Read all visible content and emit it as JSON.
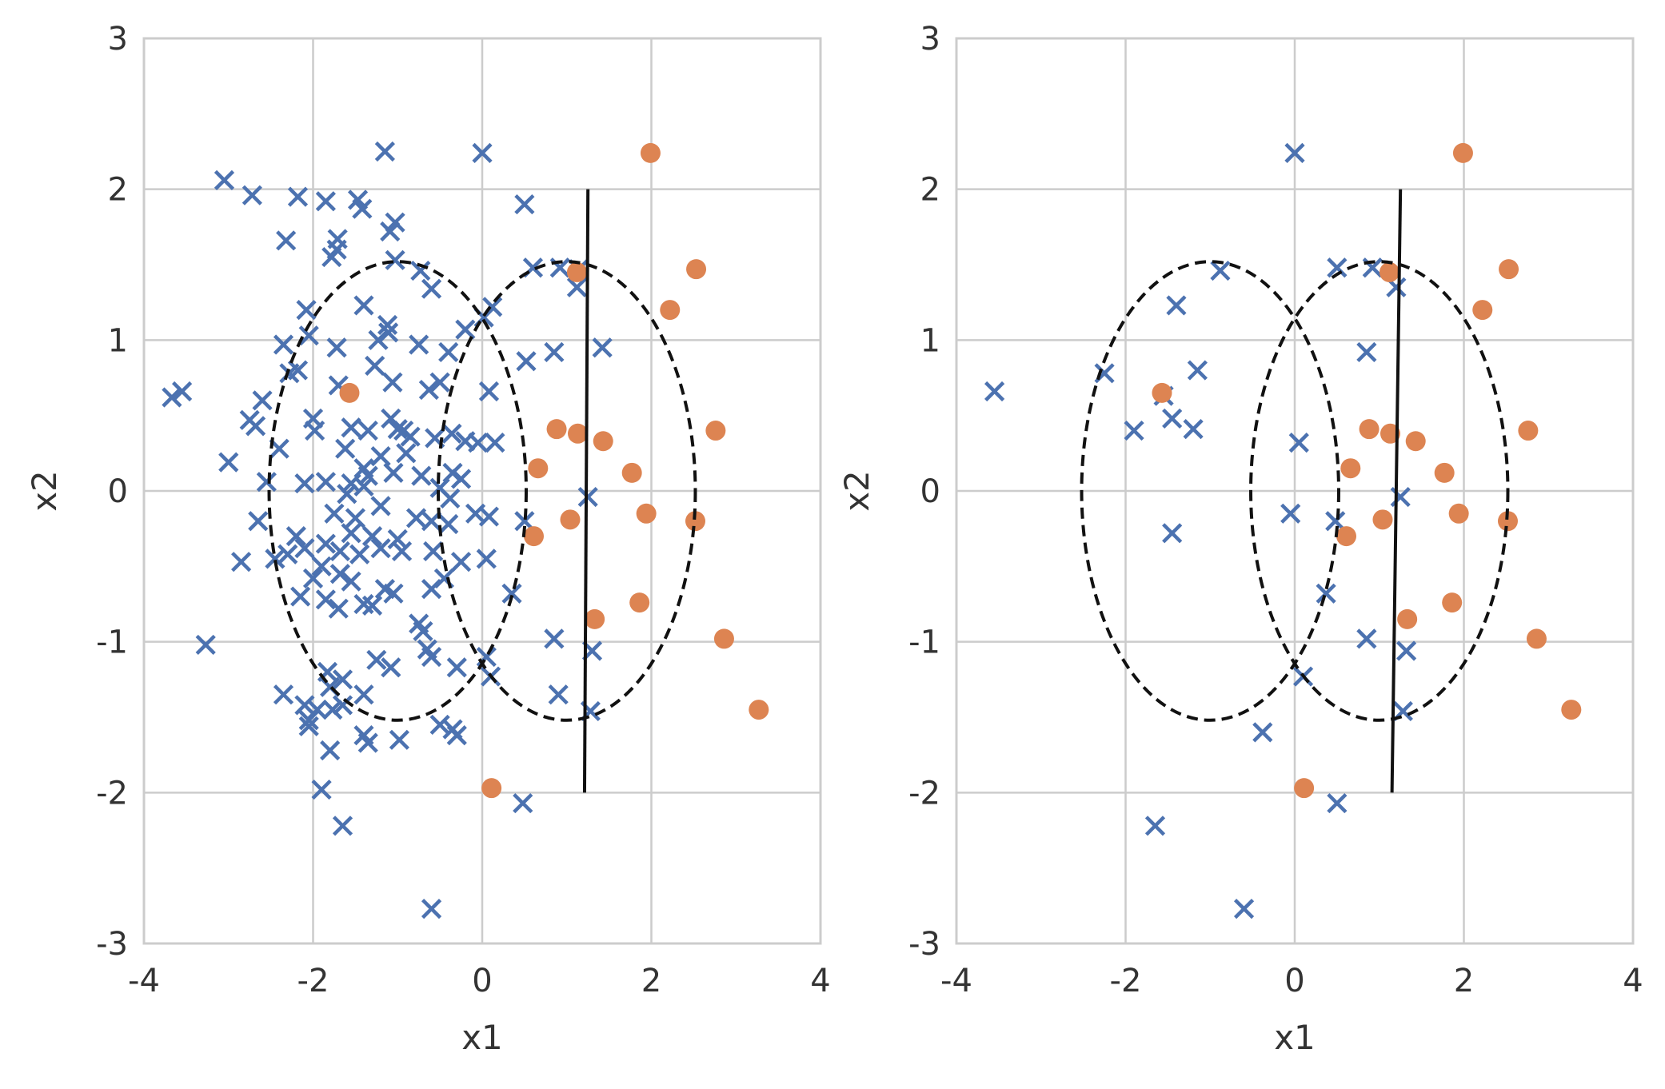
{
  "chart_data": [
    {
      "type": "scatter",
      "title": "",
      "xlabel": "x1",
      "ylabel": "x2",
      "xlim": [
        -4,
        4
      ],
      "ylim": [
        -3,
        3
      ],
      "xticks": [
        "-4",
        "-2",
        "0",
        "2",
        "4"
      ],
      "yticks": [
        "-3",
        "-2",
        "-1",
        "0",
        "1",
        "2",
        "3"
      ],
      "grid": true,
      "series": [
        {
          "marker": "x",
          "color": "#4c72b0",
          "points": [
            [
              -1.15,
              2.25
            ],
            [
              0.0,
              2.24
            ],
            [
              -3.05,
              2.06
            ],
            [
              -2.72,
              1.96
            ],
            [
              -2.18,
              1.95
            ],
            [
              -1.85,
              1.92
            ],
            [
              -1.47,
              1.93
            ],
            [
              -1.42,
              1.87
            ],
            [
              0.5,
              1.9
            ],
            [
              -1.03,
              1.78
            ],
            [
              -1.09,
              1.72
            ],
            [
              -2.32,
              1.66
            ],
            [
              -1.71,
              1.67
            ],
            [
              -1.72,
              1.6
            ],
            [
              -1.78,
              1.55
            ],
            [
              0.6,
              1.48
            ],
            [
              0.92,
              1.48
            ],
            [
              -1.03,
              1.53
            ],
            [
              -0.73,
              1.46
            ],
            [
              -0.6,
              1.34
            ],
            [
              1.14,
              1.47
            ],
            [
              1.12,
              1.35
            ],
            [
              -1.4,
              1.23
            ],
            [
              0.12,
              1.22
            ],
            [
              -2.08,
              1.2
            ],
            [
              -1.12,
              1.1
            ],
            [
              -1.11,
              1.05
            ],
            [
              -2.05,
              1.03
            ],
            [
              0.02,
              1.15
            ],
            [
              -1.23,
              1.0
            ],
            [
              -2.35,
              0.97
            ],
            [
              -1.72,
              0.95
            ],
            [
              -0.75,
              0.97
            ],
            [
              -0.4,
              0.92
            ],
            [
              0.85,
              0.92
            ],
            [
              1.42,
              0.95
            ],
            [
              -0.2,
              1.07
            ],
            [
              -2.18,
              0.8
            ],
            [
              -2.28,
              0.78
            ],
            [
              -1.27,
              0.83
            ],
            [
              -1.06,
              0.72
            ],
            [
              -1.7,
              0.7
            ],
            [
              -0.5,
              0.72
            ],
            [
              -0.63,
              0.67
            ],
            [
              0.08,
              0.66
            ],
            [
              0.52,
              0.86
            ],
            [
              -3.67,
              0.62
            ],
            [
              -3.55,
              0.66
            ],
            [
              -2.6,
              0.6
            ],
            [
              -2.0,
              0.48
            ],
            [
              -2.75,
              0.47
            ],
            [
              -2.68,
              0.43
            ],
            [
              -1.98,
              0.4
            ],
            [
              -1.55,
              0.42
            ],
            [
              -1.35,
              0.4
            ],
            [
              -1.08,
              0.48
            ],
            [
              -1.0,
              0.41
            ],
            [
              -0.93,
              0.4
            ],
            [
              -0.85,
              0.36
            ],
            [
              -0.56,
              0.35
            ],
            [
              -0.36,
              0.38
            ],
            [
              -0.2,
              0.33
            ],
            [
              -0.05,
              0.32
            ],
            [
              0.15,
              0.32
            ],
            [
              -2.4,
              0.28
            ],
            [
              -1.62,
              0.28
            ],
            [
              -1.2,
              0.23
            ],
            [
              -0.9,
              0.25
            ],
            [
              -3.0,
              0.19
            ],
            [
              -1.4,
              0.15
            ],
            [
              -1.35,
              0.1
            ],
            [
              -1.05,
              0.12
            ],
            [
              -0.72,
              0.1
            ],
            [
              -0.35,
              0.12
            ],
            [
              -0.25,
              0.08
            ],
            [
              -2.55,
              0.06
            ],
            [
              -2.1,
              0.05
            ],
            [
              -1.85,
              0.06
            ],
            [
              -1.55,
              0.05
            ],
            [
              -1.4,
              0.03
            ],
            [
              -1.6,
              -0.02
            ],
            [
              -0.5,
              0.02
            ],
            [
              -0.38,
              -0.05
            ],
            [
              -1.2,
              -0.1
            ],
            [
              -1.75,
              -0.15
            ],
            [
              -1.5,
              -0.18
            ],
            [
              -2.65,
              -0.2
            ],
            [
              -0.78,
              -0.18
            ],
            [
              -0.6,
              -0.2
            ],
            [
              -0.4,
              -0.22
            ],
            [
              -0.08,
              -0.15
            ],
            [
              0.08,
              -0.17
            ],
            [
              0.5,
              -0.2
            ],
            [
              1.25,
              -0.04
            ],
            [
              -1.55,
              -0.28
            ],
            [
              -1.3,
              -0.3
            ],
            [
              -1.0,
              -0.32
            ],
            [
              -2.2,
              -0.3
            ],
            [
              -1.85,
              -0.35
            ],
            [
              -2.1,
              -0.38
            ],
            [
              -1.68,
              -0.4
            ],
            [
              -1.45,
              -0.42
            ],
            [
              -1.2,
              -0.38
            ],
            [
              -0.95,
              -0.4
            ],
            [
              -0.58,
              -0.4
            ],
            [
              -0.25,
              -0.47
            ],
            [
              0.05,
              -0.45
            ],
            [
              -2.85,
              -0.47
            ],
            [
              -2.45,
              -0.45
            ],
            [
              -2.3,
              -0.42
            ],
            [
              -1.9,
              -0.5
            ],
            [
              -1.68,
              -0.55
            ],
            [
              -1.55,
              -0.6
            ],
            [
              -2.0,
              -0.58
            ],
            [
              -0.45,
              -0.58
            ],
            [
              -1.15,
              -0.65
            ],
            [
              -1.05,
              -0.68
            ],
            [
              -0.6,
              -0.65
            ],
            [
              0.35,
              -0.68
            ],
            [
              -2.15,
              -0.7
            ],
            [
              -1.85,
              -0.72
            ],
            [
              -1.7,
              -0.78
            ],
            [
              -1.4,
              -0.75
            ],
            [
              -1.3,
              -0.76
            ],
            [
              -0.75,
              -0.88
            ],
            [
              -0.7,
              -0.93
            ],
            [
              -0.65,
              -1.05
            ],
            [
              -0.6,
              -1.1
            ],
            [
              -3.27,
              -1.02
            ],
            [
              0.85,
              -0.98
            ],
            [
              1.3,
              -1.06
            ],
            [
              0.05,
              -1.1
            ],
            [
              -1.25,
              -1.12
            ],
            [
              -1.08,
              -1.17
            ],
            [
              -0.3,
              -1.17
            ],
            [
              -1.83,
              -1.2
            ],
            [
              -1.65,
              -1.25
            ],
            [
              -1.8,
              -1.3
            ],
            [
              0.1,
              -1.23
            ],
            [
              -2.35,
              -1.35
            ],
            [
              -1.4,
              -1.35
            ],
            [
              0.9,
              -1.35
            ],
            [
              -2.1,
              -1.42
            ],
            [
              -1.95,
              -1.45
            ],
            [
              -1.77,
              -1.45
            ],
            [
              -1.65,
              -1.42
            ],
            [
              -2.05,
              -1.52
            ],
            [
              -2.05,
              -1.56
            ],
            [
              1.28,
              -1.46
            ],
            [
              -0.5,
              -1.55
            ],
            [
              -0.35,
              -1.58
            ],
            [
              -0.3,
              -1.62
            ],
            [
              -1.4,
              -1.62
            ],
            [
              -1.35,
              -1.67
            ],
            [
              -1.8,
              -1.72
            ],
            [
              -0.98,
              -1.65
            ],
            [
              -1.9,
              -1.98
            ],
            [
              0.48,
              -2.07
            ],
            [
              -1.65,
              -2.22
            ],
            [
              -0.6,
              -2.77
            ]
          ]
        },
        {
          "marker": "o",
          "color": "#dd8452",
          "points": [
            [
              1.99,
              2.24
            ],
            [
              2.53,
              1.47
            ],
            [
              1.12,
              1.45
            ],
            [
              2.22,
              1.2
            ],
            [
              -1.57,
              0.65
            ],
            [
              0.88,
              0.41
            ],
            [
              1.13,
              0.38
            ],
            [
              1.43,
              0.33
            ],
            [
              2.76,
              0.4
            ],
            [
              0.66,
              0.15
            ],
            [
              1.77,
              0.12
            ],
            [
              1.94,
              -0.15
            ],
            [
              1.04,
              -0.19
            ],
            [
              2.52,
              -0.2
            ],
            [
              0.61,
              -0.3
            ],
            [
              1.33,
              -0.85
            ],
            [
              1.86,
              -0.74
            ],
            [
              2.86,
              -0.98
            ],
            [
              3.27,
              -1.45
            ],
            [
              0.11,
              -1.97
            ]
          ]
        }
      ],
      "ellipses": [
        {
          "center": [
            -1.0,
            0.0
          ],
          "semi_axis_x": 1.52,
          "semi_axis_y": 1.52,
          "style": "dashed",
          "color": "#111111"
        },
        {
          "center": [
            1.0,
            0.0
          ],
          "semi_axis_x": 1.52,
          "semi_axis_y": 1.52,
          "style": "dashed",
          "color": "#111111"
        }
      ],
      "decision_line": [
        [
          1.21,
          -2.0
        ],
        [
          1.25,
          2.0
        ]
      ]
    },
    {
      "type": "scatter",
      "title": "",
      "xlabel": "x1",
      "ylabel": "x2",
      "xlim": [
        -4,
        4
      ],
      "ylim": [
        -3,
        3
      ],
      "xticks": [
        "-4",
        "-2",
        "0",
        "2",
        "4"
      ],
      "yticks": [
        "-3",
        "-2",
        "-1",
        "0",
        "1",
        "2",
        "3"
      ],
      "grid": true,
      "series": [
        {
          "marker": "x",
          "color": "#4c72b0",
          "points": [
            [
              0.0,
              2.24
            ],
            [
              0.5,
              1.48
            ],
            [
              0.92,
              1.48
            ],
            [
              -0.88,
              1.46
            ],
            [
              1.2,
              1.35
            ],
            [
              -1.4,
              1.23
            ],
            [
              0.85,
              0.92
            ],
            [
              -2.25,
              0.78
            ],
            [
              -1.15,
              0.8
            ],
            [
              -3.55,
              0.66
            ],
            [
              -1.55,
              0.63
            ],
            [
              -1.45,
              0.48
            ],
            [
              -1.9,
              0.4
            ],
            [
              -1.2,
              0.41
            ],
            [
              0.05,
              0.32
            ],
            [
              1.25,
              -0.04
            ],
            [
              -0.05,
              -0.15
            ],
            [
              0.48,
              -0.2
            ],
            [
              -1.45,
              -0.28
            ],
            [
              0.37,
              -0.68
            ],
            [
              0.85,
              -0.98
            ],
            [
              1.32,
              -1.06
            ],
            [
              0.1,
              -1.23
            ],
            [
              1.28,
              -1.46
            ],
            [
              -0.38,
              -1.6
            ],
            [
              0.5,
              -2.07
            ],
            [
              -1.65,
              -2.22
            ],
            [
              -0.6,
              -2.77
            ]
          ]
        },
        {
          "marker": "o",
          "color": "#dd8452",
          "points": [
            [
              1.99,
              2.24
            ],
            [
              2.53,
              1.47
            ],
            [
              1.12,
              1.45
            ],
            [
              2.22,
              1.2
            ],
            [
              -1.57,
              0.65
            ],
            [
              0.88,
              0.41
            ],
            [
              1.13,
              0.38
            ],
            [
              1.43,
              0.33
            ],
            [
              2.76,
              0.4
            ],
            [
              0.66,
              0.15
            ],
            [
              1.77,
              0.12
            ],
            [
              1.94,
              -0.15
            ],
            [
              1.04,
              -0.19
            ],
            [
              2.52,
              -0.2
            ],
            [
              0.61,
              -0.3
            ],
            [
              1.33,
              -0.85
            ],
            [
              1.86,
              -0.74
            ],
            [
              2.86,
              -0.98
            ],
            [
              3.27,
              -1.45
            ],
            [
              0.11,
              -1.97
            ]
          ]
        }
      ],
      "ellipses": [
        {
          "center": [
            -1.0,
            0.0
          ],
          "semi_axis_x": 1.52,
          "semi_axis_y": 1.52,
          "style": "dashed",
          "color": "#111111"
        },
        {
          "center": [
            1.0,
            0.0
          ],
          "semi_axis_x": 1.52,
          "semi_axis_y": 1.52,
          "style": "dashed",
          "color": "#111111"
        }
      ],
      "decision_line": [
        [
          1.15,
          -2.0
        ],
        [
          1.25,
          2.0
        ]
      ]
    }
  ]
}
